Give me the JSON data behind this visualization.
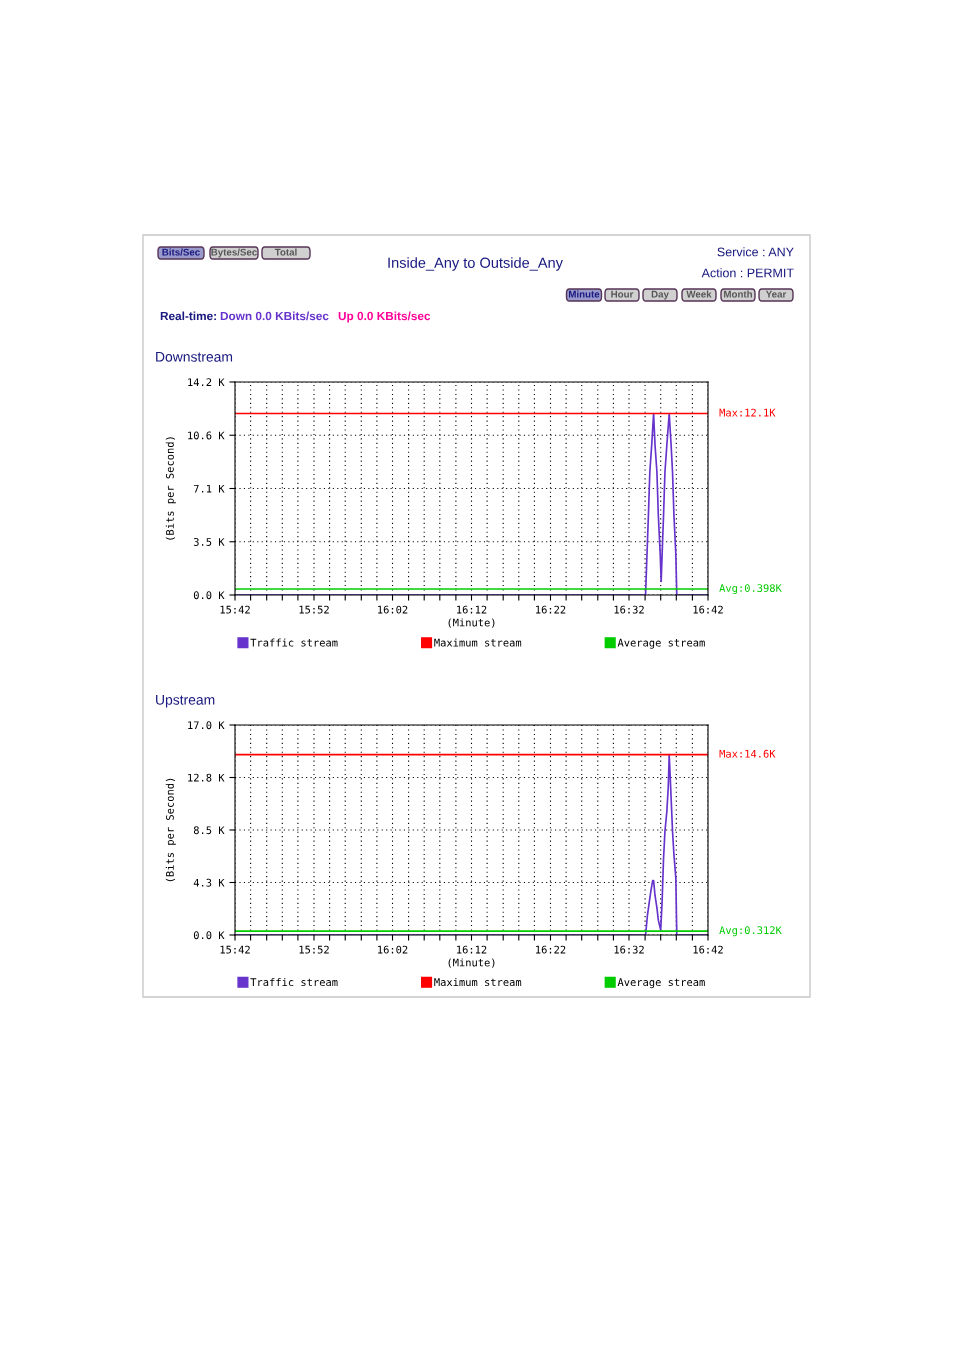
{
  "chart_data": [
    {
      "type": "other",
      "title": "Inside_Any to Outside_Any",
      "annotations": [
        "Bits/Sec",
        "Bytes/Sec",
        "Total",
        "Service : ANY",
        "Action : PERMIT",
        "Minute",
        "Hour",
        "Day",
        "Week",
        "Month",
        "Year",
        "Real-time:",
        "Down 0.0 KBits/sec",
        "Up 0.0 KBits/sec"
      ]
    },
    {
      "type": "line",
      "title": "Downstream",
      "xlabel": "(Minute)",
      "ylabel": "(Bits per Second)",
      "xlim": [
        15.7,
        16.7
      ],
      "ylim": [
        0,
        14.2
      ],
      "xticks": [
        {
          "value": 15.7,
          "label": "15:42"
        },
        {
          "value": 15.733,
          "label": null
        },
        {
          "value": 15.767,
          "label": null
        },
        {
          "value": 15.8,
          "label": null
        },
        {
          "value": 15.833,
          "label": null
        },
        {
          "value": 15.867,
          "label": "15:52"
        },
        {
          "value": 15.9,
          "label": null
        },
        {
          "value": 15.933,
          "label": null
        },
        {
          "value": 15.967,
          "label": null
        },
        {
          "value": 16.0,
          "label": null
        },
        {
          "value": 16.033,
          "label": "16:02"
        },
        {
          "value": 16.067,
          "label": null
        },
        {
          "value": 16.1,
          "label": null
        },
        {
          "value": 16.133,
          "label": null
        },
        {
          "value": 16.167,
          "label": null
        },
        {
          "value": 16.2,
          "label": "16:12"
        },
        {
          "value": 16.233,
          "label": null
        },
        {
          "value": 16.267,
          "label": null
        },
        {
          "value": 16.3,
          "label": null
        },
        {
          "value": 16.333,
          "label": null
        },
        {
          "value": 16.367,
          "label": "16:22"
        },
        {
          "value": 16.4,
          "label": null
        },
        {
          "value": 16.433,
          "label": null
        },
        {
          "value": 16.467,
          "label": null
        },
        {
          "value": 16.5,
          "label": null
        },
        {
          "value": 16.533,
          "label": "16:32"
        },
        {
          "value": 16.567,
          "label": null
        },
        {
          "value": 16.6,
          "label": null
        },
        {
          "value": 16.633,
          "label": null
        },
        {
          "value": 16.667,
          "label": null
        },
        {
          "value": 16.7,
          "label": "16:42"
        }
      ],
      "yticks": [
        {
          "value": 0,
          "label": "0.0 K"
        },
        {
          "value": 3.55,
          "label": "3.5 K"
        },
        {
          "value": 7.1,
          "label": "7.1 K"
        },
        {
          "value": 10.65,
          "label": "10.6 K"
        },
        {
          "value": 14.2,
          "label": "14.2 K"
        }
      ],
      "grid": true,
      "legend": "bottom",
      "line_style": "solid",
      "series": [
        {
          "name": "Traffic stream",
          "color": "#6633cc",
          "x": [
            15.7,
            16.568,
            16.57,
            16.574,
            16.577,
            16.581,
            16.585,
            16.588,
            16.592,
            16.595,
            16.599,
            16.601,
            16.603,
            16.606,
            16.609,
            16.613,
            16.618,
            16.622,
            16.625,
            16.628,
            16.632,
            16.634,
            16.7
          ],
          "values": [
            0,
            0,
            1.8,
            5.3,
            8.2,
            10.0,
            12.1,
            10.0,
            8.2,
            5.3,
            2.7,
            0.9,
            2.7,
            5.3,
            8.2,
            10.0,
            12.1,
            10.0,
            8.2,
            5.3,
            2.7,
            0,
            0
          ]
        },
        {
          "name": "Maximum stream",
          "color": "#ff0000",
          "x": [
            15.7,
            16.7
          ],
          "values": [
            12.1,
            12.1
          ]
        },
        {
          "name": "Average stream",
          "color": "#00cc00",
          "x": [
            15.7,
            16.7
          ],
          "values": [
            0.398,
            0.398
          ]
        }
      ],
      "annotations": [
        "Max:12.1K",
        "Avg:0.398K"
      ]
    },
    {
      "type": "line",
      "title": "Upstream",
      "xlabel": "(Minute)",
      "ylabel": "(Bits per Second)",
      "xlim": [
        15.7,
        16.7
      ],
      "ylim": [
        0,
        17.0
      ],
      "xticks": [
        {
          "value": 15.7,
          "label": "15:42"
        },
        {
          "value": 15.733,
          "label": null
        },
        {
          "value": 15.767,
          "label": null
        },
        {
          "value": 15.8,
          "label": null
        },
        {
          "value": 15.833,
          "label": null
        },
        {
          "value": 15.867,
          "label": "15:52"
        },
        {
          "value": 15.9,
          "label": null
        },
        {
          "value": 15.933,
          "label": null
        },
        {
          "value": 15.967,
          "label": null
        },
        {
          "value": 16.0,
          "label": null
        },
        {
          "value": 16.033,
          "label": "16:02"
        },
        {
          "value": 16.067,
          "label": null
        },
        {
          "value": 16.1,
          "label": null
        },
        {
          "value": 16.133,
          "label": null
        },
        {
          "value": 16.167,
          "label": null
        },
        {
          "value": 16.2,
          "label": "16:12"
        },
        {
          "value": 16.233,
          "label": null
        },
        {
          "value": 16.267,
          "label": null
        },
        {
          "value": 16.3,
          "label": null
        },
        {
          "value": 16.333,
          "label": null
        },
        {
          "value": 16.367,
          "label": "16:22"
        },
        {
          "value": 16.4,
          "label": null
        },
        {
          "value": 16.433,
          "label": null
        },
        {
          "value": 16.467,
          "label": null
        },
        {
          "value": 16.5,
          "label": null
        },
        {
          "value": 16.533,
          "label": "16:32"
        },
        {
          "value": 16.567,
          "label": null
        },
        {
          "value": 16.6,
          "label": null
        },
        {
          "value": 16.633,
          "label": null
        },
        {
          "value": 16.667,
          "label": null
        },
        {
          "value": 16.7,
          "label": "16:42"
        }
      ],
      "yticks": [
        {
          "value": 0,
          "label": "0.0 K"
        },
        {
          "value": 4.25,
          "label": "4.3 K"
        },
        {
          "value": 8.5,
          "label": "8.5 K"
        },
        {
          "value": 12.75,
          "label": "12.8 K"
        },
        {
          "value": 17.0,
          "label": "17.0 K"
        }
      ],
      "grid": true,
      "legend": "bottom",
      "line_style": "solid",
      "series": [
        {
          "name": "Traffic stream",
          "color": "#6633cc",
          "x": [
            15.7,
            16.568,
            16.572,
            16.576,
            16.579,
            16.583,
            16.585,
            16.588,
            16.592,
            16.595,
            16.6,
            16.603,
            16.606,
            16.609,
            16.613,
            16.616,
            16.618,
            16.621,
            16.625,
            16.628,
            16.632,
            16.634,
            16.7
          ],
          "values": [
            0,
            0,
            1.6,
            2.7,
            3.5,
            4.4,
            4.4,
            3.2,
            2.2,
            1.2,
            0.4,
            2.7,
            6.2,
            8.4,
            10.0,
            12.0,
            14.6,
            12.0,
            8.4,
            6.5,
            4.6,
            0,
            0
          ]
        },
        {
          "name": "Maximum stream",
          "color": "#ff0000",
          "x": [
            15.7,
            16.7
          ],
          "values": [
            14.6,
            14.6
          ]
        },
        {
          "name": "Average stream",
          "color": "#00cc00",
          "x": [
            15.7,
            16.7
          ],
          "values": [
            0.312,
            0.312
          ]
        }
      ],
      "annotations": [
        "Max:14.6K",
        "Avg:0.312K"
      ]
    }
  ]
}
